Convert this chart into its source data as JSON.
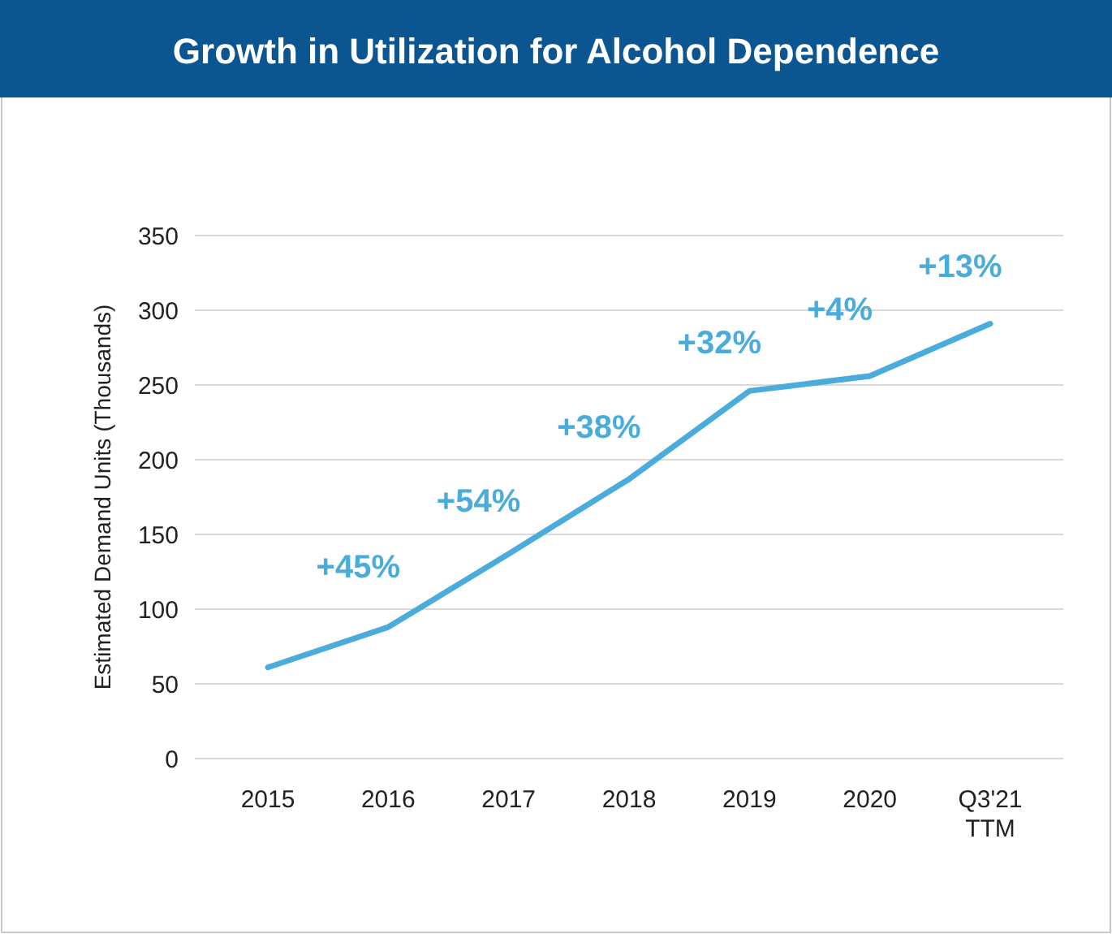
{
  "chart_data": {
    "type": "line",
    "title": "Growth in Utilization for Alcohol Dependence",
    "ylabel": "Estimated Demand Units (Thousands)",
    "categories": [
      "2015",
      "2016",
      "2017",
      "2018",
      "2019",
      "2020",
      "Q3'21 TTM"
    ],
    "series": [
      {
        "color": "#4aacdb",
        "values": [
          61,
          88,
          137,
          187,
          246,
          256,
          291
        ]
      }
    ],
    "ylim": [
      0,
      350
    ],
    "yticks": [
      0,
      50,
      100,
      150,
      200,
      250,
      300,
      350
    ],
    "grid": "y",
    "marker": "none",
    "line_style": "solid",
    "annotations": [
      "+45%",
      "+54%",
      "+38%",
      "+32%",
      "+4%",
      "+13%"
    ]
  }
}
